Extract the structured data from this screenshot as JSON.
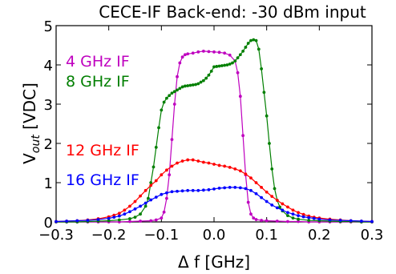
{
  "chart_data": {
    "type": "line",
    "title": "CECE-IF Back-end: -30 dBm input",
    "xlabel": "Δ f [GHz]",
    "ylabel": {
      "main": "V",
      "subscript": "out",
      "suffix": " [VDC]"
    },
    "xlim": [
      -0.3,
      0.3
    ],
    "ylim": [
      0,
      5
    ],
    "xticks": [
      -0.3,
      -0.2,
      -0.1,
      0.0,
      0.1,
      0.2,
      0.3
    ],
    "xtick_labels": [
      "−0.3",
      "−0.2",
      "−0.1",
      "0.0",
      "0.1",
      "0.2",
      "0.3"
    ],
    "yticks": [
      0,
      1,
      2,
      3,
      4,
      5
    ],
    "ytick_labels": [
      "0",
      "1",
      "2",
      "3",
      "4",
      "5"
    ],
    "grid": false,
    "legend": "in-plot text labels, top-left",
    "series": [
      {
        "name": "4 GHz IF",
        "color": "#bf00bf",
        "x": [
          -0.3,
          -0.28,
          -0.26,
          -0.24,
          -0.22,
          -0.2,
          -0.18,
          -0.16,
          -0.14,
          -0.12,
          -0.11,
          -0.1,
          -0.095,
          -0.09,
          -0.085,
          -0.08,
          -0.075,
          -0.07,
          -0.065,
          -0.06,
          -0.055,
          -0.05,
          -0.04,
          -0.03,
          -0.02,
          -0.01,
          0.0,
          0.01,
          0.02,
          0.03,
          0.04,
          0.045,
          0.05,
          0.055,
          0.06,
          0.065,
          0.07,
          0.075,
          0.08,
          0.09,
          0.1,
          0.12,
          0.14,
          0.16,
          0.18,
          0.2,
          0.22,
          0.24,
          0.26,
          0.28,
          0.3
        ],
        "y": [
          0,
          0,
          0,
          0,
          0,
          0,
          0,
          0.01,
          0.02,
          0.03,
          0.05,
          0.1,
          0.25,
          0.6,
          1.2,
          2.1,
          3.0,
          3.7,
          4.05,
          4.2,
          4.26,
          4.28,
          4.3,
          4.33,
          4.35,
          4.34,
          4.33,
          4.32,
          4.3,
          4.25,
          4.1,
          3.8,
          3.2,
          2.2,
          1.2,
          0.5,
          0.2,
          0.1,
          0.06,
          0.04,
          0.03,
          0.02,
          0.01,
          0.01,
          0,
          0,
          0,
          0,
          0,
          0,
          0
        ]
      },
      {
        "name": "8 GHz IF",
        "color": "#007f00",
        "x": [
          -0.3,
          -0.28,
          -0.26,
          -0.24,
          -0.22,
          -0.2,
          -0.18,
          -0.16,
          -0.15,
          -0.14,
          -0.13,
          -0.125,
          -0.12,
          -0.115,
          -0.11,
          -0.105,
          -0.1,
          -0.095,
          -0.09,
          -0.085,
          -0.08,
          -0.075,
          -0.07,
          -0.065,
          -0.06,
          -0.055,
          -0.05,
          -0.045,
          -0.04,
          -0.035,
          -0.03,
          -0.025,
          -0.02,
          -0.015,
          -0.01,
          -0.005,
          0.0,
          0.005,
          0.01,
          0.015,
          0.02,
          0.025,
          0.03,
          0.035,
          0.04,
          0.045,
          0.05,
          0.055,
          0.06,
          0.065,
          0.07,
          0.075,
          0.08,
          0.085,
          0.09,
          0.095,
          0.1,
          0.105,
          0.11,
          0.115,
          0.12,
          0.125,
          0.13,
          0.14,
          0.15,
          0.16,
          0.18,
          0.2,
          0.22,
          0.24,
          0.26,
          0.28,
          0.3
        ],
        "y": [
          0,
          0,
          0,
          0.01,
          0.02,
          0.03,
          0.05,
          0.08,
          0.12,
          0.2,
          0.4,
          0.6,
          1.0,
          1.4,
          1.9,
          2.4,
          2.85,
          3.05,
          3.15,
          3.22,
          3.28,
          3.32,
          3.36,
          3.4,
          3.44,
          3.46,
          3.47,
          3.48,
          3.49,
          3.5,
          3.52,
          3.56,
          3.6,
          3.66,
          3.74,
          3.84,
          3.95,
          3.96,
          3.97,
          3.98,
          3.99,
          4.0,
          4.02,
          4.05,
          4.1,
          4.18,
          4.26,
          4.35,
          4.45,
          4.55,
          4.62,
          4.64,
          4.62,
          4.4,
          3.9,
          3.3,
          2.7,
          2.0,
          1.35,
          0.85,
          0.55,
          0.38,
          0.28,
          0.16,
          0.1,
          0.07,
          0.04,
          0.03,
          0.02,
          0.01,
          0.01,
          0,
          0
        ]
      },
      {
        "name": "12 GHz IF",
        "color": "#ff0000",
        "x": [
          -0.3,
          -0.28,
          -0.26,
          -0.24,
          -0.22,
          -0.2,
          -0.19,
          -0.18,
          -0.17,
          -0.16,
          -0.15,
          -0.14,
          -0.13,
          -0.12,
          -0.11,
          -0.1,
          -0.09,
          -0.08,
          -0.07,
          -0.06,
          -0.05,
          -0.04,
          -0.03,
          -0.02,
          -0.01,
          0.0,
          0.01,
          0.02,
          0.03,
          0.04,
          0.05,
          0.06,
          0.07,
          0.08,
          0.09,
          0.1,
          0.11,
          0.12,
          0.13,
          0.14,
          0.15,
          0.16,
          0.17,
          0.18,
          0.19,
          0.2,
          0.22,
          0.24,
          0.26,
          0.28,
          0.3
        ],
        "y": [
          0.01,
          0.02,
          0.03,
          0.05,
          0.08,
          0.13,
          0.17,
          0.22,
          0.3,
          0.4,
          0.52,
          0.66,
          0.8,
          0.93,
          1.05,
          1.2,
          1.32,
          1.42,
          1.5,
          1.55,
          1.58,
          1.58,
          1.55,
          1.52,
          1.5,
          1.47,
          1.44,
          1.42,
          1.39,
          1.35,
          1.3,
          1.22,
          1.12,
          1.0,
          0.88,
          0.76,
          0.65,
          0.55,
          0.46,
          0.38,
          0.3,
          0.24,
          0.19,
          0.15,
          0.12,
          0.1,
          0.07,
          0.05,
          0.03,
          0.02,
          0.01
        ]
      },
      {
        "name": "16 GHz IF",
        "color": "#0000ff",
        "x": [
          -0.3,
          -0.28,
          -0.26,
          -0.24,
          -0.22,
          -0.2,
          -0.19,
          -0.18,
          -0.17,
          -0.16,
          -0.15,
          -0.14,
          -0.13,
          -0.12,
          -0.11,
          -0.1,
          -0.09,
          -0.08,
          -0.07,
          -0.06,
          -0.05,
          -0.04,
          -0.03,
          -0.02,
          -0.01,
          0.0,
          0.01,
          0.02,
          0.03,
          0.04,
          0.05,
          0.06,
          0.07,
          0.08,
          0.09,
          0.1,
          0.11,
          0.12,
          0.13,
          0.14,
          0.15,
          0.16,
          0.17,
          0.18,
          0.19,
          0.2,
          0.22,
          0.24,
          0.26,
          0.28,
          0.3
        ],
        "y": [
          0.01,
          0.02,
          0.03,
          0.04,
          0.06,
          0.09,
          0.12,
          0.15,
          0.2,
          0.26,
          0.33,
          0.4,
          0.48,
          0.56,
          0.63,
          0.7,
          0.74,
          0.77,
          0.78,
          0.79,
          0.8,
          0.8,
          0.8,
          0.81,
          0.82,
          0.84,
          0.86,
          0.87,
          0.88,
          0.88,
          0.87,
          0.85,
          0.8,
          0.72,
          0.62,
          0.52,
          0.43,
          0.36,
          0.3,
          0.24,
          0.2,
          0.16,
          0.13,
          0.11,
          0.09,
          0.07,
          0.05,
          0.04,
          0.03,
          0.02,
          0.01
        ]
      }
    ]
  }
}
